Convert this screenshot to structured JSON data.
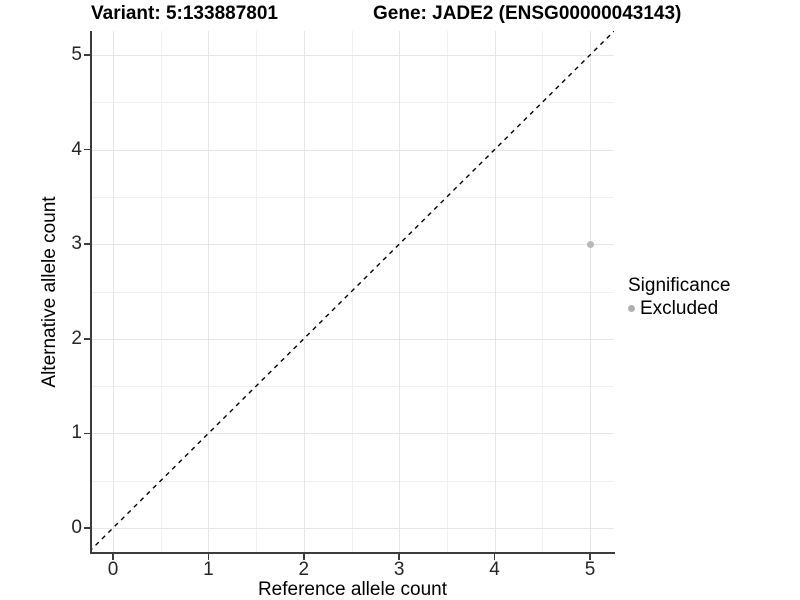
{
  "chart_data": {
    "type": "scatter",
    "title_left": "Variant: 5:133887801",
    "title_right": "Gene: JADE2 (ENSG00000043143)",
    "xlabel": "Reference allele count",
    "ylabel": "Alternative allele count",
    "x_ticks": [
      0,
      1,
      2,
      3,
      4,
      5
    ],
    "y_ticks": [
      0,
      1,
      2,
      3,
      4,
      5
    ],
    "x_minor": [
      0.5,
      1.5,
      2.5,
      3.5,
      4.5
    ],
    "y_minor": [
      0.5,
      1.5,
      2.5,
      3.5,
      4.5
    ],
    "xlim": [
      -0.25,
      5.25
    ],
    "ylim": [
      -0.25,
      5.25
    ],
    "grid": "major+minor",
    "points": [
      {
        "x": 5,
        "y": 3,
        "series": "Excluded",
        "color": "#b8b8b8"
      }
    ],
    "reference_line": {
      "kind": "identity y=x",
      "style": "dashed",
      "color": "#000000"
    },
    "legend": {
      "position": "right",
      "title": "Significance",
      "entries": [
        {
          "label": "Excluded",
          "color": "#b0b0b0"
        }
      ]
    },
    "colors": {
      "axis_line": "#3c3c3c",
      "tick_label": "#262626",
      "grid_major": "#e6e6e6",
      "grid_minor": "#f0f0f0",
      "background": "#ffffff"
    }
  }
}
